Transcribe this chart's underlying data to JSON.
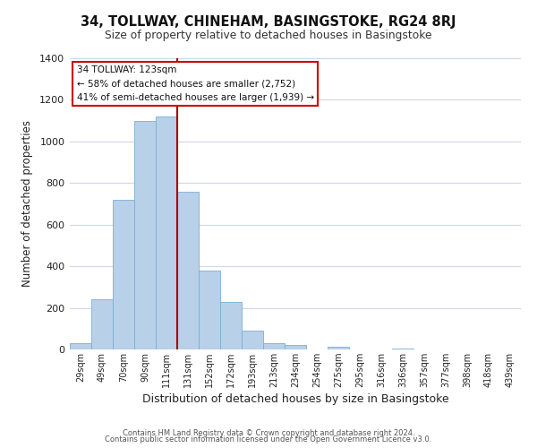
{
  "title1": "34, TOLLWAY, CHINEHAM, BASINGSTOKE, RG24 8RJ",
  "title2": "Size of property relative to detached houses in Basingstoke",
  "xlabel": "Distribution of detached houses by size in Basingstoke",
  "ylabel": "Number of detached properties",
  "categories": [
    "29sqm",
    "49sqm",
    "70sqm",
    "90sqm",
    "111sqm",
    "131sqm",
    "152sqm",
    "172sqm",
    "193sqm",
    "213sqm",
    "234sqm",
    "254sqm",
    "275sqm",
    "295sqm",
    "316sqm",
    "336sqm",
    "357sqm",
    "377sqm",
    "398sqm",
    "418sqm",
    "439sqm"
  ],
  "values": [
    30,
    240,
    720,
    1100,
    1120,
    760,
    380,
    230,
    90,
    30,
    20,
    0,
    15,
    0,
    0,
    5,
    0,
    0,
    0,
    0,
    0
  ],
  "bar_color": "#b8d0e8",
  "bar_edge_color": "#7aafd4",
  "red_line_color": "#aa0000",
  "annotation_line1": "34 TOLLWAY: 123sqm",
  "annotation_line2": "← 58% of detached houses are smaller (2,752)",
  "annotation_line3": "41% of semi-detached houses are larger (1,939) →",
  "box_facecolor": "#ffffff",
  "box_edgecolor": "#cc0000",
  "footer1": "Contains HM Land Registry data © Crown copyright and database right 2024.",
  "footer2": "Contains public sector information licensed under the Open Government Licence v3.0.",
  "ylim": [
    0,
    1400
  ],
  "yticks": [
    0,
    200,
    400,
    600,
    800,
    1000,
    1200,
    1400
  ],
  "background_color": "#ffffff",
  "grid_color": "#ccd8e8",
  "red_line_x": 4.5
}
